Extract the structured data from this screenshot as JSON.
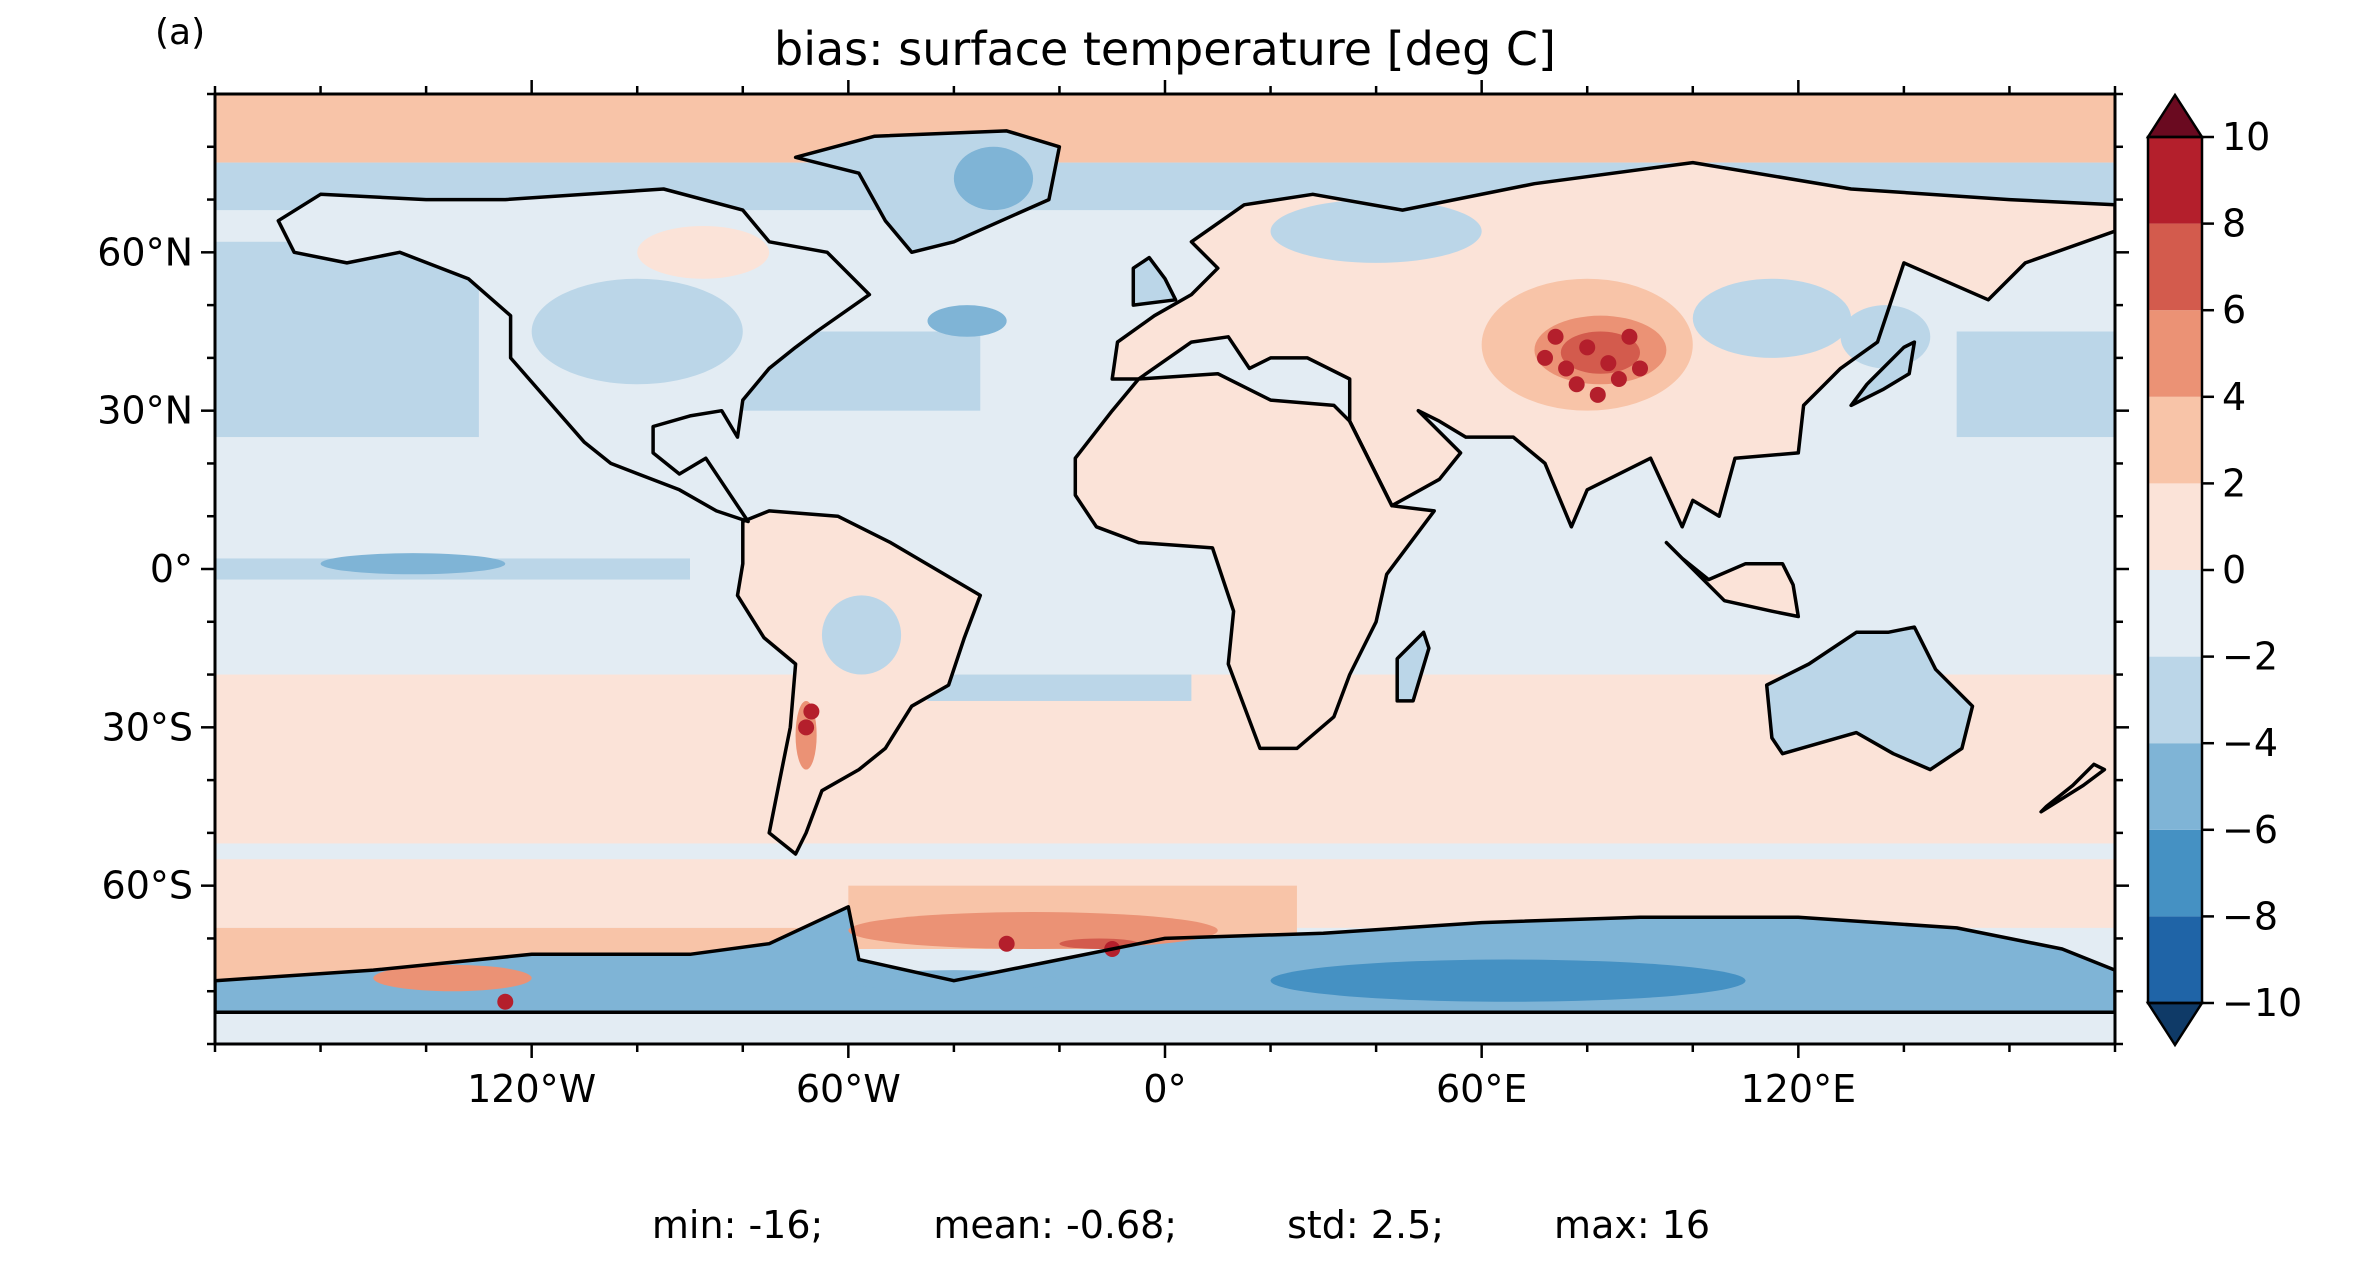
{
  "panel_label": "(a)",
  "title": "bias: surface temperature [deg C]",
  "map": {
    "projection": "PlateCarree",
    "lon_range": [
      -180,
      180
    ],
    "lat_range": [
      -90,
      90
    ],
    "lon_ticks": [
      {
        "value": -120,
        "label": "120°W"
      },
      {
        "value": -60,
        "label": "60°W"
      },
      {
        "value": 0,
        "label": "0°"
      },
      {
        "value": 60,
        "label": "60°E"
      },
      {
        "value": 120,
        "label": "120°E"
      }
    ],
    "lat_ticks": [
      {
        "value": 60,
        "label": "60°N"
      },
      {
        "value": 30,
        "label": "30°N"
      },
      {
        "value": 0,
        "label": "0°"
      },
      {
        "value": -30,
        "label": "30°S"
      },
      {
        "value": -60,
        "label": "60°S"
      }
    ],
    "colors": {
      "ocean_near_zero": "#e3ecf3",
      "land_slightly_warm": "#fbe3d8",
      "warm_2_4": "#f8c4a8",
      "warm_4_6": "#eb9275",
      "warm_6_8": "#d35b4d",
      "warm_8_10": "#b41f2c",
      "warm_extend": "#6a0a20",
      "cool_0_2": "#e3ecf3",
      "cool_2_4": "#bbd6e8",
      "cool_4_6": "#7fb4d6",
      "cool_6_8": "#4591c3",
      "cool_8_10": "#1f64a7",
      "cool_extend": "#0f3a67",
      "coastline": "#000000"
    }
  },
  "colorbar": {
    "levels": [
      -10,
      -8,
      -6,
      -4,
      -2,
      0,
      2,
      4,
      6,
      8,
      10
    ],
    "labels": [
      "−10",
      "−8",
      "−6",
      "−4",
      "−2",
      "0",
      "2",
      "4",
      "6",
      "8",
      "10"
    ],
    "colors": [
      "#1f64a7",
      "#4591c3",
      "#7fb4d6",
      "#bbd6e8",
      "#e3ecf3",
      "#fbe3d8",
      "#f8c4a8",
      "#eb9275",
      "#d35b4d",
      "#b41f2c"
    ],
    "extend_low_color": "#0f3a67",
    "extend_high_color": "#6a0a20"
  },
  "stats": {
    "min": "min: -16;",
    "mean": "mean: -0.68;",
    "std": "std: 2.5;",
    "max": "max: 16"
  }
}
